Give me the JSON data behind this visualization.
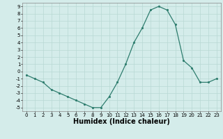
{
  "x": [
    0,
    1,
    2,
    3,
    4,
    5,
    6,
    7,
    8,
    9,
    10,
    11,
    12,
    13,
    14,
    15,
    16,
    17,
    18,
    19,
    20,
    21,
    22,
    23
  ],
  "y": [
    -0.5,
    -1.0,
    -1.5,
    -2.5,
    -3.0,
    -3.5,
    -4.0,
    -4.5,
    -5.0,
    -5.0,
    -3.5,
    -1.5,
    1.0,
    4.0,
    6.0,
    8.5,
    9.0,
    8.5,
    6.5,
    1.5,
    0.5,
    -1.5,
    -1.5,
    -1.0
  ],
  "xlabel": "Humidex (Indice chaleur)",
  "xlim": [
    -0.5,
    23.5
  ],
  "ylim": [
    -5.5,
    9.5
  ],
  "yticks": [
    -5,
    -4,
    -3,
    -2,
    -1,
    0,
    1,
    2,
    3,
    4,
    5,
    6,
    7,
    8,
    9
  ],
  "xticks": [
    0,
    1,
    2,
    3,
    4,
    5,
    6,
    7,
    8,
    9,
    10,
    11,
    12,
    13,
    14,
    15,
    16,
    17,
    18,
    19,
    20,
    21,
    22,
    23
  ],
  "line_color": "#2e7d6e",
  "marker_color": "#2e7d6e",
  "bg_color": "#d4ecea",
  "grid_color": "#b8d8d4",
  "tick_fontsize": 5.0,
  "label_fontsize": 7.0
}
